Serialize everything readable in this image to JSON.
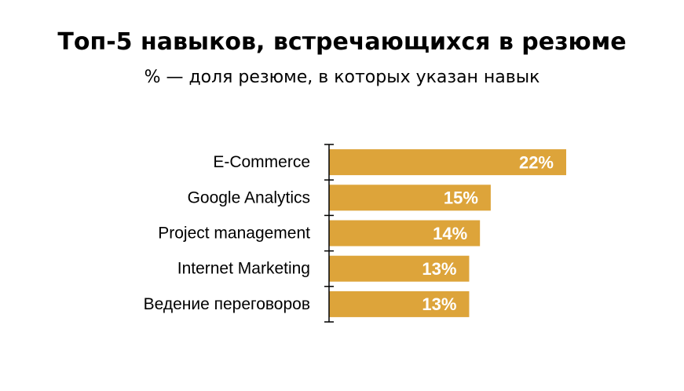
{
  "chart_data": {
    "type": "bar",
    "orientation": "horizontal",
    "title": "Топ-5 навыков, встречающихся в резюме",
    "subtitle": "% — доля резюме, в которых указан навык",
    "categories": [
      "E-Commerce",
      "Google Analytics",
      "Project management",
      "Internet Marketing",
      "Ведение переговоров"
    ],
    "values": [
      22,
      15,
      14,
      13,
      13
    ],
    "value_labels": [
      "22%",
      "15%",
      "14%",
      "13%",
      "13%"
    ],
    "value_unit": "%",
    "xlim": [
      0,
      22
    ],
    "grid": false,
    "legend": "none",
    "bar_color": "#DDA43A",
    "axis_color": "#000000",
    "label_color": "#000000",
    "value_label_color": "#FFFFFF"
  }
}
